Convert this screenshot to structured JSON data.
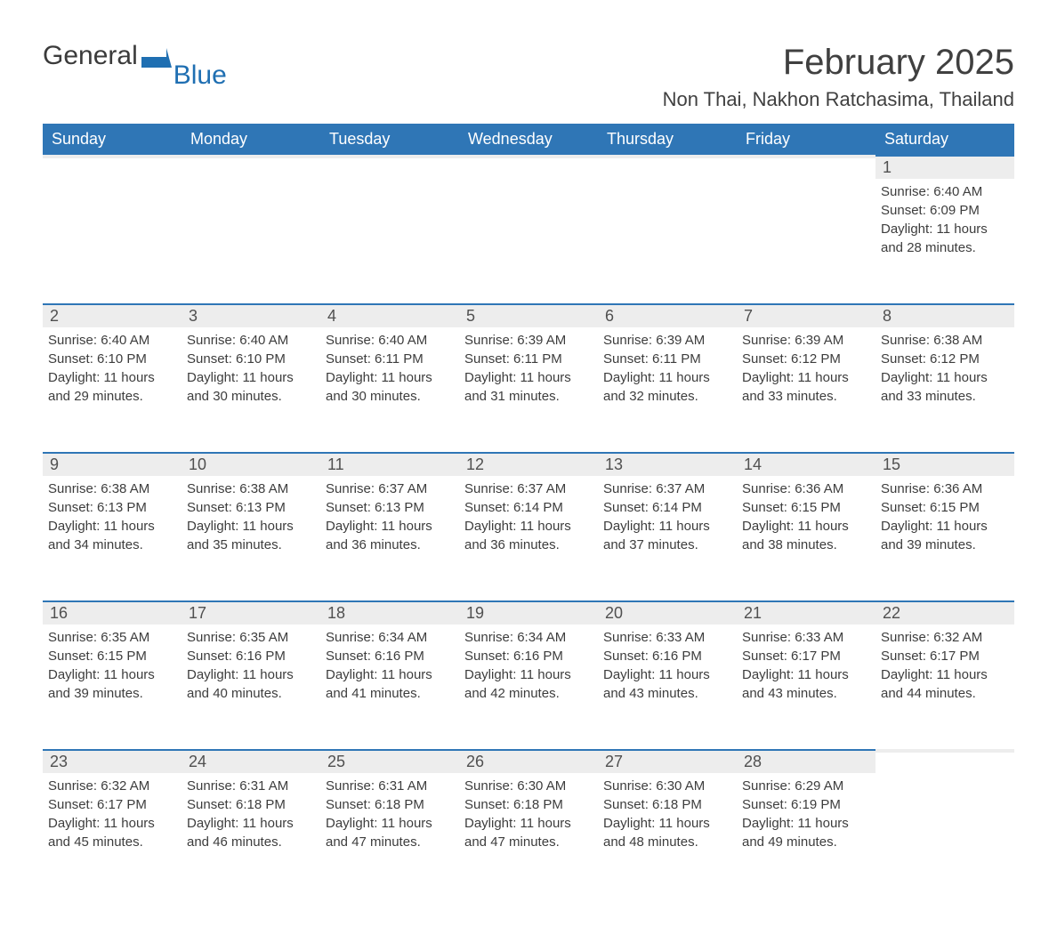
{
  "logo": {
    "word1": "General",
    "word2": "Blue"
  },
  "title": "February 2025",
  "location": "Non Thai, Nakhon Ratchasima, Thailand",
  "colors": {
    "header_bg": "#2f76b6",
    "header_text": "#ffffff",
    "daynum_bg": "#ededed",
    "daynum_border": "#2f76b6",
    "body_text": "#383838",
    "logo_blue": "#1f6fb2"
  },
  "fonts": {
    "title_size_pt": 30,
    "location_size_pt": 16,
    "header_size_pt": 14,
    "daynum_size_pt": 14,
    "details_size_pt": 11
  },
  "layout": {
    "columns": 7,
    "rows": 5,
    "first_day_index": 6
  },
  "days_of_week": [
    "Sunday",
    "Monday",
    "Tuesday",
    "Wednesday",
    "Thursday",
    "Friday",
    "Saturday"
  ],
  "weeks": [
    [
      null,
      null,
      null,
      null,
      null,
      null,
      {
        "n": "1",
        "sunrise": "Sunrise: 6:40 AM",
        "sunset": "Sunset: 6:09 PM",
        "d1": "Daylight: 11 hours",
        "d2": "and 28 minutes."
      }
    ],
    [
      {
        "n": "2",
        "sunrise": "Sunrise: 6:40 AM",
        "sunset": "Sunset: 6:10 PM",
        "d1": "Daylight: 11 hours",
        "d2": "and 29 minutes."
      },
      {
        "n": "3",
        "sunrise": "Sunrise: 6:40 AM",
        "sunset": "Sunset: 6:10 PM",
        "d1": "Daylight: 11 hours",
        "d2": "and 30 minutes."
      },
      {
        "n": "4",
        "sunrise": "Sunrise: 6:40 AM",
        "sunset": "Sunset: 6:11 PM",
        "d1": "Daylight: 11 hours",
        "d2": "and 30 minutes."
      },
      {
        "n": "5",
        "sunrise": "Sunrise: 6:39 AM",
        "sunset": "Sunset: 6:11 PM",
        "d1": "Daylight: 11 hours",
        "d2": "and 31 minutes."
      },
      {
        "n": "6",
        "sunrise": "Sunrise: 6:39 AM",
        "sunset": "Sunset: 6:11 PM",
        "d1": "Daylight: 11 hours",
        "d2": "and 32 minutes."
      },
      {
        "n": "7",
        "sunrise": "Sunrise: 6:39 AM",
        "sunset": "Sunset: 6:12 PM",
        "d1": "Daylight: 11 hours",
        "d2": "and 33 minutes."
      },
      {
        "n": "8",
        "sunrise": "Sunrise: 6:38 AM",
        "sunset": "Sunset: 6:12 PM",
        "d1": "Daylight: 11 hours",
        "d2": "and 33 minutes."
      }
    ],
    [
      {
        "n": "9",
        "sunrise": "Sunrise: 6:38 AM",
        "sunset": "Sunset: 6:13 PM",
        "d1": "Daylight: 11 hours",
        "d2": "and 34 minutes."
      },
      {
        "n": "10",
        "sunrise": "Sunrise: 6:38 AM",
        "sunset": "Sunset: 6:13 PM",
        "d1": "Daylight: 11 hours",
        "d2": "and 35 minutes."
      },
      {
        "n": "11",
        "sunrise": "Sunrise: 6:37 AM",
        "sunset": "Sunset: 6:13 PM",
        "d1": "Daylight: 11 hours",
        "d2": "and 36 minutes."
      },
      {
        "n": "12",
        "sunrise": "Sunrise: 6:37 AM",
        "sunset": "Sunset: 6:14 PM",
        "d1": "Daylight: 11 hours",
        "d2": "and 36 minutes."
      },
      {
        "n": "13",
        "sunrise": "Sunrise: 6:37 AM",
        "sunset": "Sunset: 6:14 PM",
        "d1": "Daylight: 11 hours",
        "d2": "and 37 minutes."
      },
      {
        "n": "14",
        "sunrise": "Sunrise: 6:36 AM",
        "sunset": "Sunset: 6:15 PM",
        "d1": "Daylight: 11 hours",
        "d2": "and 38 minutes."
      },
      {
        "n": "15",
        "sunrise": "Sunrise: 6:36 AM",
        "sunset": "Sunset: 6:15 PM",
        "d1": "Daylight: 11 hours",
        "d2": "and 39 minutes."
      }
    ],
    [
      {
        "n": "16",
        "sunrise": "Sunrise: 6:35 AM",
        "sunset": "Sunset: 6:15 PM",
        "d1": "Daylight: 11 hours",
        "d2": "and 39 minutes."
      },
      {
        "n": "17",
        "sunrise": "Sunrise: 6:35 AM",
        "sunset": "Sunset: 6:16 PM",
        "d1": "Daylight: 11 hours",
        "d2": "and 40 minutes."
      },
      {
        "n": "18",
        "sunrise": "Sunrise: 6:34 AM",
        "sunset": "Sunset: 6:16 PM",
        "d1": "Daylight: 11 hours",
        "d2": "and 41 minutes."
      },
      {
        "n": "19",
        "sunrise": "Sunrise: 6:34 AM",
        "sunset": "Sunset: 6:16 PM",
        "d1": "Daylight: 11 hours",
        "d2": "and 42 minutes."
      },
      {
        "n": "20",
        "sunrise": "Sunrise: 6:33 AM",
        "sunset": "Sunset: 6:16 PM",
        "d1": "Daylight: 11 hours",
        "d2": "and 43 minutes."
      },
      {
        "n": "21",
        "sunrise": "Sunrise: 6:33 AM",
        "sunset": "Sunset: 6:17 PM",
        "d1": "Daylight: 11 hours",
        "d2": "and 43 minutes."
      },
      {
        "n": "22",
        "sunrise": "Sunrise: 6:32 AM",
        "sunset": "Sunset: 6:17 PM",
        "d1": "Daylight: 11 hours",
        "d2": "and 44 minutes."
      }
    ],
    [
      {
        "n": "23",
        "sunrise": "Sunrise: 6:32 AM",
        "sunset": "Sunset: 6:17 PM",
        "d1": "Daylight: 11 hours",
        "d2": "and 45 minutes."
      },
      {
        "n": "24",
        "sunrise": "Sunrise: 6:31 AM",
        "sunset": "Sunset: 6:18 PM",
        "d1": "Daylight: 11 hours",
        "d2": "and 46 minutes."
      },
      {
        "n": "25",
        "sunrise": "Sunrise: 6:31 AM",
        "sunset": "Sunset: 6:18 PM",
        "d1": "Daylight: 11 hours",
        "d2": "and 47 minutes."
      },
      {
        "n": "26",
        "sunrise": "Sunrise: 6:30 AM",
        "sunset": "Sunset: 6:18 PM",
        "d1": "Daylight: 11 hours",
        "d2": "and 47 minutes."
      },
      {
        "n": "27",
        "sunrise": "Sunrise: 6:30 AM",
        "sunset": "Sunset: 6:18 PM",
        "d1": "Daylight: 11 hours",
        "d2": "and 48 minutes."
      },
      {
        "n": "28",
        "sunrise": "Sunrise: 6:29 AM",
        "sunset": "Sunset: 6:19 PM",
        "d1": "Daylight: 11 hours",
        "d2": "and 49 minutes."
      },
      null
    ]
  ]
}
